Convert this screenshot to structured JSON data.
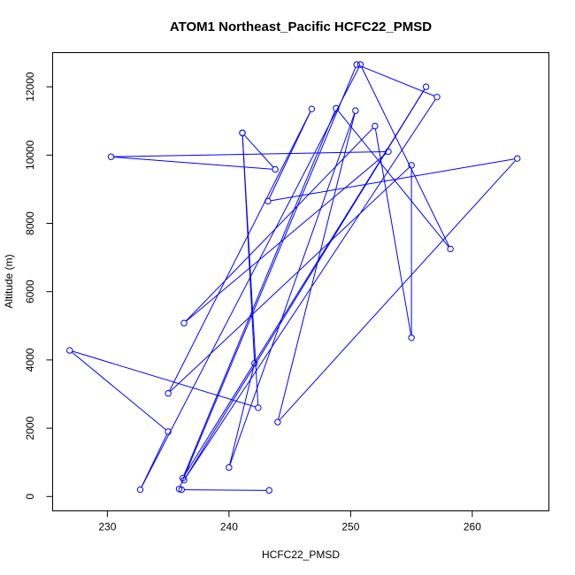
{
  "chart_data": {
    "type": "line",
    "title": "ATOM1 Northeast_Pacific HCFC22_PMSD",
    "xlabel": "HCFC22_PMSD",
    "ylabel": "Altitude (m)",
    "xlim": [
      225.5,
      266.3
    ],
    "ylim": [
      -420,
      13000
    ],
    "x_ticks": [
      230,
      240,
      250,
      260
    ],
    "y_ticks": [
      0,
      2000,
      4000,
      6000,
      8000,
      10000,
      12000
    ],
    "grid": false,
    "legend": "none",
    "markers": "open-circle",
    "colors": {
      "series": "#0000ff",
      "axes": "#000000"
    },
    "series": [
      {
        "points": [
          {
            "x": 243.3,
            "y": 180
          },
          {
            "x": 236.1,
            "y": 200
          },
          {
            "x": 235.9,
            "y": 220
          },
          {
            "x": 250.5,
            "y": 12650
          },
          {
            "x": 257.1,
            "y": 11700
          },
          {
            "x": 236.3,
            "y": 480
          },
          {
            "x": 256.2,
            "y": 12000
          },
          {
            "x": 236.2,
            "y": 540
          },
          {
            "x": 248.8,
            "y": 11370
          },
          {
            "x": 258.2,
            "y": 7250
          },
          {
            "x": 250.8,
            "y": 12650
          },
          {
            "x": 232.7,
            "y": 200
          },
          {
            "x": 235.0,
            "y": 1900
          },
          {
            "x": 226.9,
            "y": 4280
          },
          {
            "x": 242.4,
            "y": 2600
          },
          {
            "x": 241.1,
            "y": 10650
          },
          {
            "x": 242.1,
            "y": 3900
          },
          {
            "x": 240.0,
            "y": 850
          },
          {
            "x": 250.4,
            "y": 11300
          },
          {
            "x": 244.0,
            "y": 2180
          },
          {
            "x": 263.7,
            "y": 9900
          },
          {
            "x": 243.2,
            "y": 8650
          },
          {
            "x": 246.8,
            "y": 11350
          },
          {
            "x": 235.0,
            "y": 3020
          },
          {
            "x": 255.0,
            "y": 9700
          },
          {
            "x": 255.0,
            "y": 4650
          },
          {
            "x": 252.0,
            "y": 10850
          },
          {
            "x": 236.3,
            "y": 5080
          },
          {
            "x": 253.1,
            "y": 10100
          },
          {
            "x": 230.3,
            "y": 9950
          },
          {
            "x": 243.8,
            "y": 9580
          },
          {
            "x": 241.1,
            "y": 10650
          }
        ]
      }
    ]
  }
}
